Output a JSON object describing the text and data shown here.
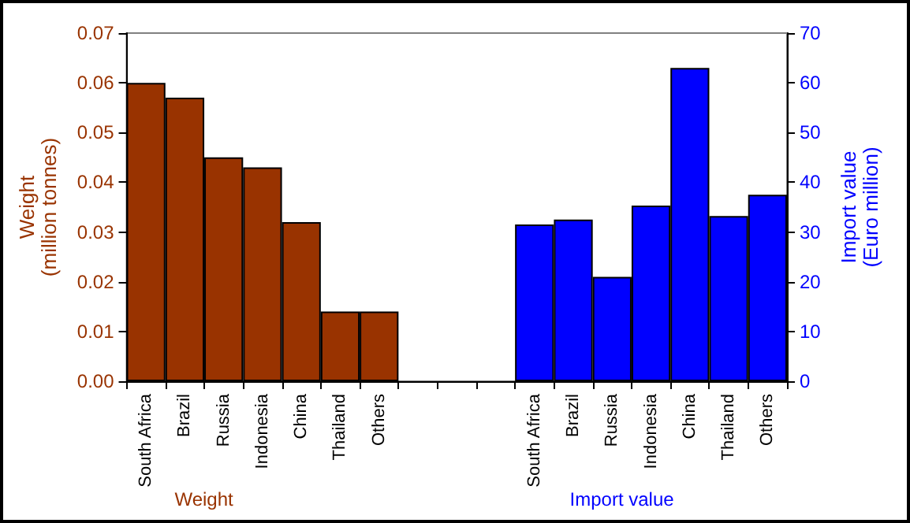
{
  "chart_data": {
    "type": "bar",
    "categories": [
      "South Africa",
      "Brazil",
      "Russia",
      "Indonesia",
      "China",
      "Thailand",
      "Others",
      null,
      null,
      null,
      "South Africa",
      "Brazil",
      "Russia",
      "Indonesia",
      "China",
      "Thailand",
      "Others"
    ],
    "series": [
      {
        "name": "Weight",
        "color": "#993300",
        "values": [
          0.06,
          0.057,
          0.045,
          0.043,
          0.032,
          0.014,
          0.014,
          null,
          null,
          null,
          null,
          null,
          null,
          null,
          null,
          null,
          null
        ]
      },
      {
        "name": "Import value",
        "color": "#0000ff",
        "axis": "y2",
        "values": [
          null,
          null,
          null,
          null,
          null,
          null,
          null,
          null,
          null,
          null,
          31.5,
          32.5,
          21,
          35.3,
          63,
          33.2,
          37.5
        ]
      }
    ],
    "ylabel": "Weight\n(million tonnes)",
    "y2label": "Import value\n(Euro million)",
    "ylim": [
      0,
      0.07
    ],
    "yticks": [
      {
        "value": 0,
        "label": "0.00"
      },
      {
        "value": 0.01,
        "label": "0.01"
      },
      {
        "value": 0.02,
        "label": "0.02"
      },
      {
        "value": 0.03,
        "label": "0.03"
      },
      {
        "value": 0.04,
        "label": "0.04"
      },
      {
        "value": 0.05,
        "label": "0.05"
      },
      {
        "value": 0.06,
        "label": "0.06"
      },
      {
        "value": 0.07,
        "label": "0.07"
      }
    ],
    "y2lim": [
      0,
      70
    ],
    "y2ticks": [
      0,
      10,
      20,
      30,
      40,
      50,
      60,
      70
    ],
    "grid": false,
    "legend": "bottom"
  }
}
